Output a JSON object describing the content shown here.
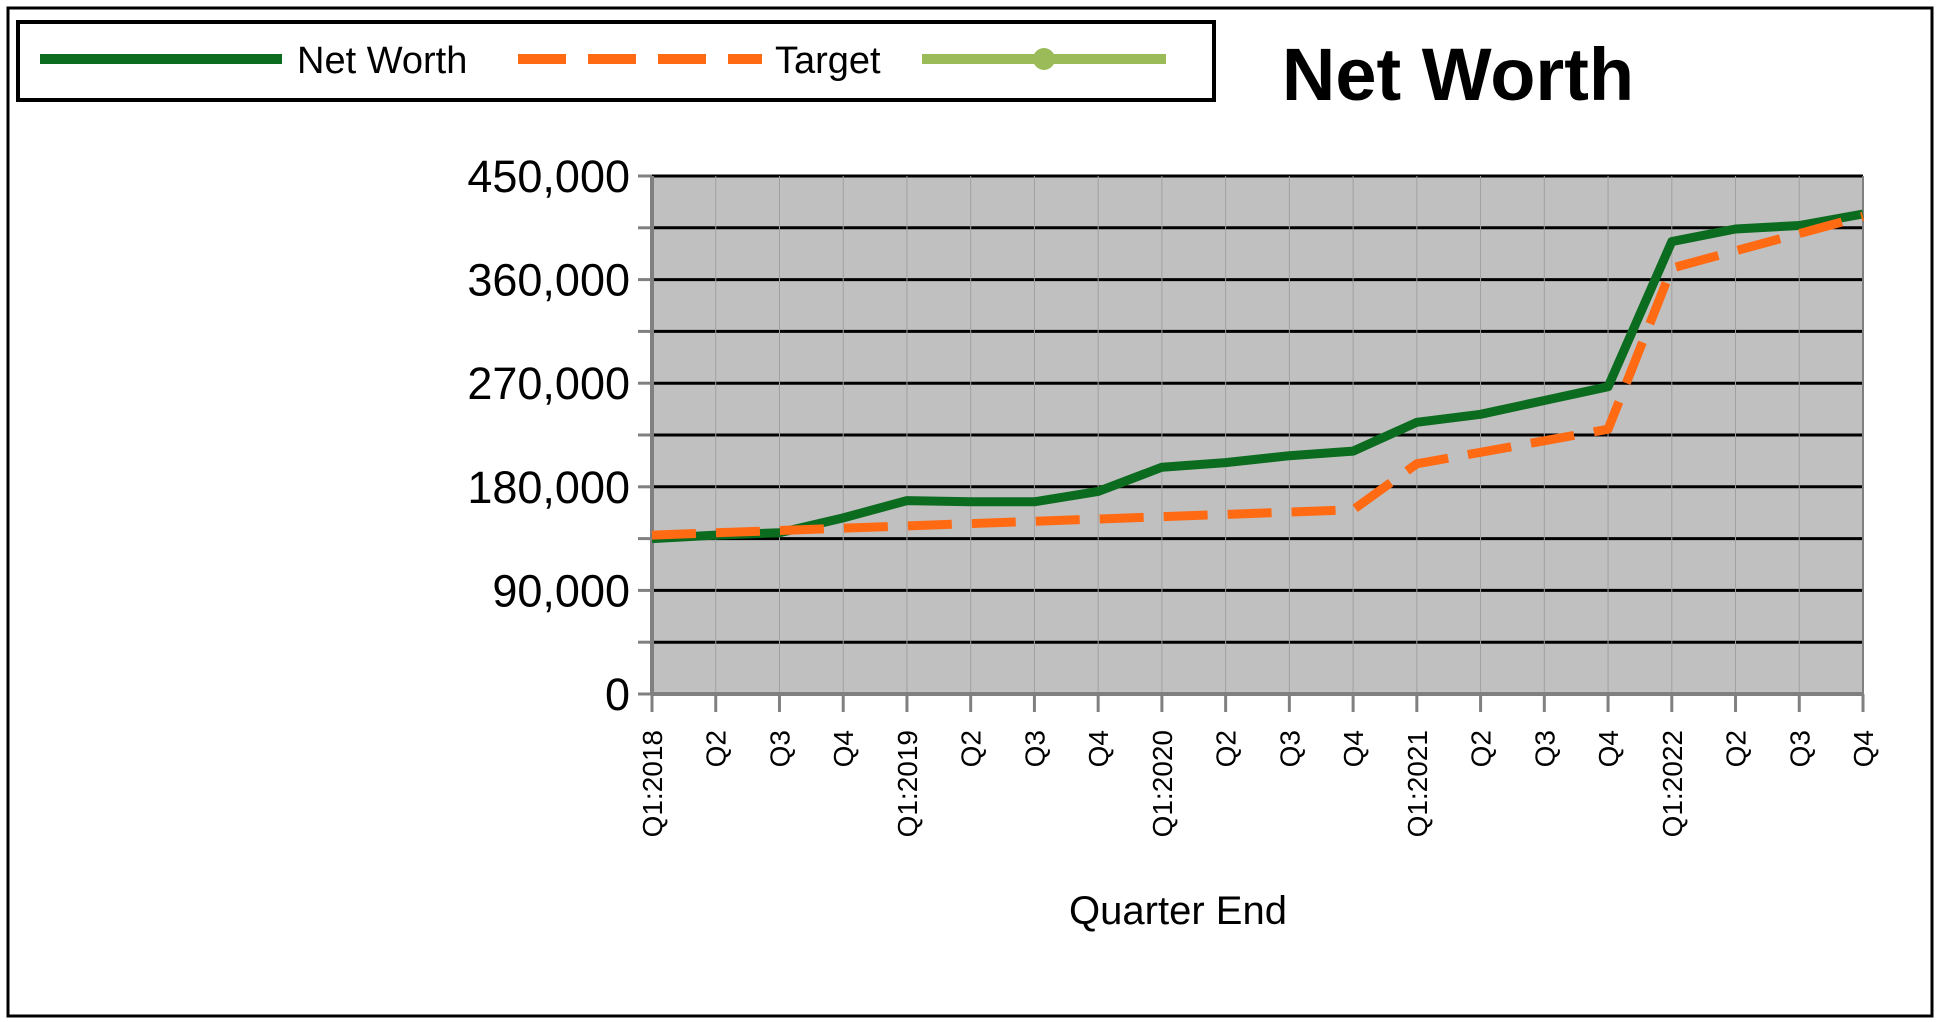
{
  "chart_data": {
    "type": "line",
    "title": "Net Worth",
    "xlabel": "Quarter End",
    "ylabel": "",
    "ylim": [
      0,
      450000
    ],
    "yticks": [
      "450,000",
      "360,000",
      "270,000",
      "180,000",
      "90,000",
      "0"
    ],
    "ytick_values": [
      450000,
      360000,
      270000,
      180000,
      90000,
      0
    ],
    "minor_gridline_values": [
      45000,
      135000,
      225000,
      315000,
      405000
    ],
    "grid": true,
    "legend_position": "top-left",
    "categories": [
      "Q1:2018",
      "Q2",
      "Q3",
      "Q4",
      "Q1:2019",
      "Q2",
      "Q3",
      "Q4",
      "Q1:2020",
      "Q2",
      "Q3",
      "Q4",
      "Q1:2021",
      "Q2",
      "Q3",
      "Q4",
      "Q1:2022",
      "Q2",
      "Q3",
      "Q4"
    ],
    "series": [
      {
        "name": "Net Worth",
        "color": "#0b6b1e",
        "style": "solid",
        "values": [
          135000,
          138000,
          140000,
          153000,
          168000,
          167000,
          167000,
          176000,
          197000,
          201000,
          207000,
          211000,
          236000,
          243000,
          255000,
          267000,
          393000,
          404000,
          407000,
          417000
        ]
      },
      {
        "name": "Target",
        "color": "#ff6a13",
        "style": "dashed",
        "values": [
          138000,
          140000,
          142000,
          144000,
          146000,
          148000,
          150000,
          152000,
          154000,
          156000,
          158000,
          160000,
          200000,
          210000,
          220000,
          230000,
          370000,
          385000,
          400000,
          415000
        ]
      }
    ],
    "extra_legend_entry": {
      "name": "",
      "color": "#9bbb59",
      "style": "line-marker"
    },
    "colors": {
      "plot_background": "#c0c0c0",
      "gridline": "#000000",
      "axis": "#808080"
    }
  }
}
